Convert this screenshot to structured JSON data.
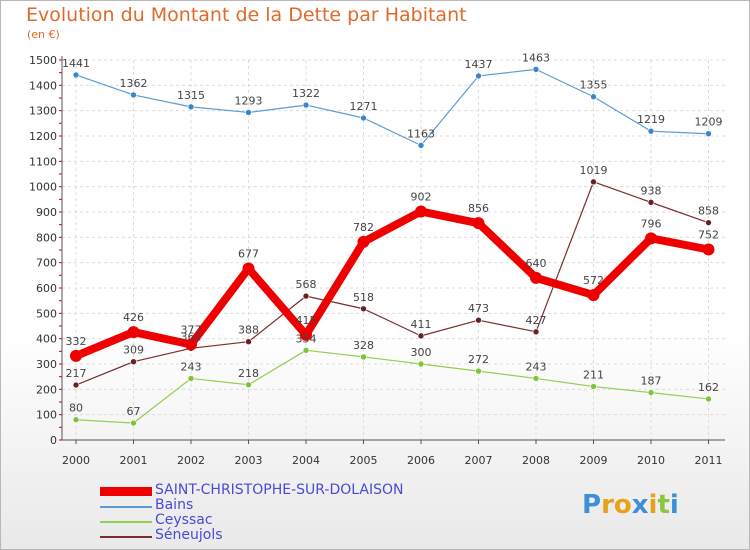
{
  "chart_data": {
    "type": "line",
    "title": "Evolution du Montant de la Dette par Habitant",
    "subtitle": "(en €)",
    "categories": [
      "2000",
      "2001",
      "2002",
      "2003",
      "2004",
      "2005",
      "2006",
      "2007",
      "2008",
      "2009",
      "2010",
      "2011"
    ],
    "ylim": [
      0,
      1500
    ],
    "yticks": [
      0,
      100,
      200,
      300,
      400,
      500,
      600,
      700,
      800,
      900,
      1000,
      1100,
      1200,
      1300,
      1400,
      1500
    ],
    "grid": true,
    "legend_position": "bottom-left",
    "series": [
      {
        "name": "Bains",
        "color": "#5b9bd5",
        "marker": "#3a86c8",
        "values": [
          1441,
          1362,
          1315,
          1293,
          1322,
          1271,
          1163,
          1437,
          1463,
          1355,
          1219,
          1209
        ]
      },
      {
        "name": "Ceyssac",
        "color": "#92d050",
        "marker": "#7cc43a",
        "values": [
          80,
          67,
          243,
          218,
          354,
          328,
          300,
          272,
          243,
          211,
          187,
          162
        ]
      },
      {
        "name": "Séneujols",
        "color": "#7b2d2d",
        "marker": "#6b1f1f",
        "values": [
          217,
          309,
          362,
          388,
          568,
          518,
          411,
          473,
          427,
          1019,
          938,
          858
        ]
      },
      {
        "name": "SAINT-CHRISTOPHE-SUR-DOLAISON",
        "color": "#ee0000",
        "marker": "#ee0000",
        "values": [
          332,
          426,
          377,
          677,
          415,
          782,
          902,
          856,
          640,
          572,
          796,
          752
        ]
      }
    ]
  },
  "legend": [
    {
      "name": "SAINT-CHRISTOPHE-SUR-DOLAISON",
      "color": "#ee0000",
      "thick": true
    },
    {
      "name": "Bains",
      "color": "#5b9bd5",
      "thick": false
    },
    {
      "name": "Ceyssac",
      "color": "#92d050",
      "thick": false
    },
    {
      "name": "Séneujols",
      "color": "#7b2d2d",
      "thick": false
    }
  ],
  "logo": {
    "letters": [
      "P",
      "r",
      "o",
      "x",
      "i",
      "t",
      "i"
    ],
    "colors": [
      "#3d8fd8",
      "#e8a21a",
      "#e8a21a",
      "#3d8fd8",
      "#e8a21a",
      "#8cc63f",
      "#3d8fd8"
    ]
  }
}
